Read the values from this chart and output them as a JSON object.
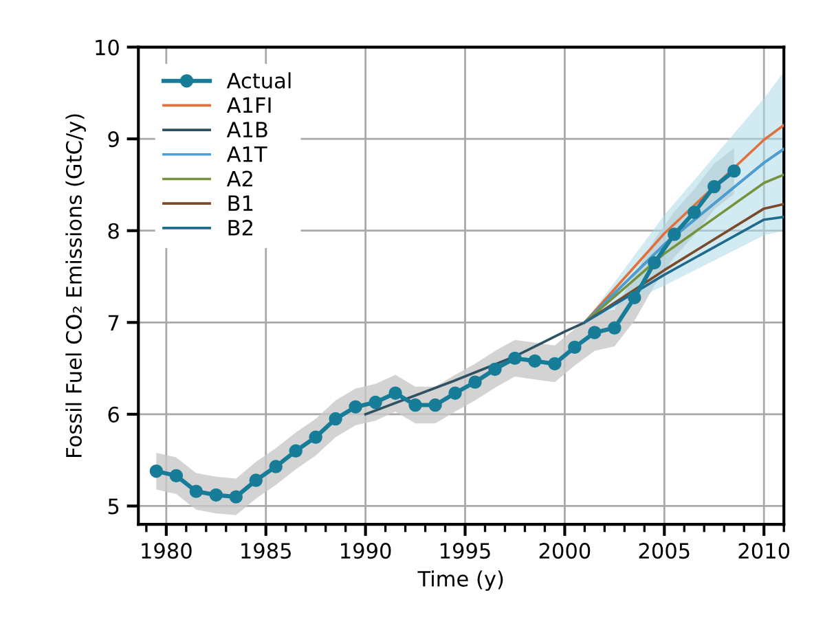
{
  "chart_data": {
    "type": "line",
    "xlabel": "Time (y)",
    "ylabel": "Fossil Fuel CO₂ Emissions (GtC/y)",
    "xlim": [
      1978.6,
      2011
    ],
    "ylim": [
      4.8,
      10
    ],
    "xticks": [
      1980,
      1985,
      1990,
      1995,
      2000,
      2005,
      2010
    ],
    "yticks": [
      5,
      6,
      7,
      8,
      9,
      10
    ],
    "grid": true,
    "legend": "top left",
    "series": [
      {
        "name": "Actual",
        "color": "#177c98",
        "marker": "circle",
        "x": [
          1979.5,
          1980.5,
          1981.5,
          1982.5,
          1983.5,
          1984.5,
          1985.5,
          1986.5,
          1987.5,
          1988.5,
          1989.5,
          1990.5,
          1991.5,
          1992.5,
          1993.5,
          1994.5,
          1995.5,
          1996.5,
          1997.5,
          1998.5,
          1999.5,
          2000.5,
          2001.5,
          2002.5,
          2003.5,
          2004.5,
          2005.5,
          2006.5,
          2007.5,
          2008.5
        ],
        "values": [
          5.38,
          5.33,
          5.16,
          5.12,
          5.1,
          5.28,
          5.43,
          5.6,
          5.75,
          5.95,
          6.08,
          6.13,
          6.23,
          6.1,
          6.1,
          6.23,
          6.35,
          6.49,
          6.61,
          6.58,
          6.55,
          6.73,
          6.89,
          6.94,
          7.27,
          7.65,
          7.96,
          8.2,
          8.48,
          8.65
        ],
        "lower": [
          5.18,
          5.13,
          4.96,
          4.92,
          4.9,
          5.08,
          5.23,
          5.4,
          5.55,
          5.75,
          5.88,
          5.93,
          6.03,
          5.9,
          5.9,
          6.03,
          6.15,
          6.29,
          6.41,
          6.38,
          6.35,
          6.53,
          6.69,
          6.74,
          7.02,
          7.4,
          7.71,
          7.95,
          8.23,
          8.4
        ],
        "upper": [
          5.58,
          5.53,
          5.36,
          5.32,
          5.3,
          5.48,
          5.63,
          5.8,
          5.95,
          6.15,
          6.28,
          6.33,
          6.43,
          6.3,
          6.3,
          6.43,
          6.55,
          6.69,
          6.81,
          6.78,
          6.75,
          6.93,
          7.09,
          7.14,
          7.52,
          7.9,
          8.21,
          8.45,
          8.73,
          8.9
        ]
      },
      {
        "name": "A1FI",
        "color": "#e0703c",
        "x": [
          2001,
          2005,
          2010,
          2011
        ],
        "values": [
          7.0,
          7.97,
          8.99,
          9.15
        ]
      },
      {
        "name": "A1B",
        "color": "#2f5262",
        "x": [
          1990,
          1994.4,
          1997.5,
          2000,
          2001,
          2005,
          2010,
          2011
        ],
        "values": [
          6.0,
          6.36,
          6.63,
          6.9,
          7.0,
          7.85,
          8.74,
          8.89
        ]
      },
      {
        "name": "A1T",
        "color": "#4a9fd6",
        "x": [
          2001,
          2005,
          2010,
          2011
        ],
        "values": [
          7.0,
          7.85,
          8.74,
          8.89
        ]
      },
      {
        "name": "A2",
        "color": "#76923c",
        "x": [
          2001,
          2005,
          2010,
          2011
        ],
        "values": [
          7.0,
          7.75,
          8.52,
          8.61
        ],
        "lower": [
          7.0,
          7.4,
          7.95,
          8.0
        ],
        "upper": [
          7.0,
          8.17,
          9.44,
          9.73
        ]
      },
      {
        "name": "B1",
        "color": "#7a4a2a",
        "x": [
          2001,
          2005,
          2010,
          2011
        ],
        "values": [
          7.0,
          7.57,
          8.24,
          8.29
        ]
      },
      {
        "name": "B2",
        "color": "#1f6a8c",
        "x": [
          2001,
          2005,
          2010,
          2011
        ],
        "values": [
          7.0,
          7.52,
          8.12,
          8.15
        ]
      }
    ]
  }
}
